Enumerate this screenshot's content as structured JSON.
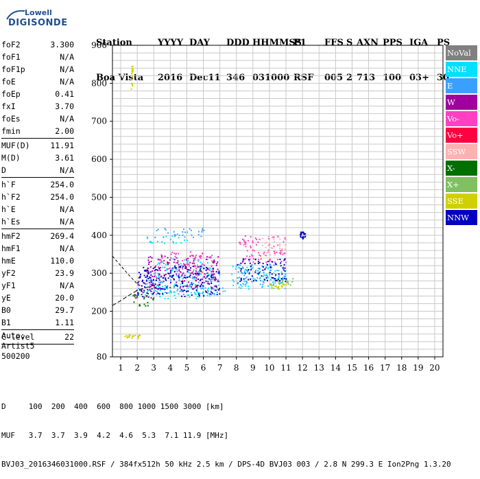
{
  "logo": {
    "line1": "Lowell",
    "line2": "DIGISONDE"
  },
  "header": {
    "row1": [
      "Station",
      "YYYY",
      "DAY",
      "DDD",
      "HHMMSS",
      "P1",
      "FFS",
      "S",
      "AXN",
      "PPS",
      "IGA",
      "PS"
    ],
    "row2": [
      "Boa Vista",
      "2016",
      "Dec11",
      "346",
      "031000",
      "RSF",
      "005",
      "2",
      "713",
      "100",
      "03+",
      "30"
    ]
  },
  "params": [
    {
      "name": "foF2",
      "value": "3.300"
    },
    {
      "name": "foF1",
      "value": "N/A"
    },
    {
      "name": "foF1p",
      "value": "N/A"
    },
    {
      "name": "foE",
      "value": "N/A"
    },
    {
      "name": "foEp",
      "value": "0.41"
    },
    {
      "name": "fxI",
      "value": "3.70"
    },
    {
      "name": "foEs",
      "value": "N/A"
    },
    {
      "name": "fmin",
      "value": "2.00"
    },
    {
      "sep": true
    },
    {
      "name": "MUF(D)",
      "value": "11.91"
    },
    {
      "name": "M(D)",
      "value": "3.61"
    },
    {
      "name": "D",
      "value": "N/A"
    },
    {
      "sep": true
    },
    {
      "name": "h`F",
      "value": "254.0"
    },
    {
      "name": "h`F2",
      "value": "254.0"
    },
    {
      "name": "h`E",
      "value": "N/A"
    },
    {
      "name": "h`Es",
      "value": "N/A"
    },
    {
      "sep": true
    },
    {
      "name": "hmF2",
      "value": "269.4"
    },
    {
      "name": "hmF1",
      "value": "N/A"
    },
    {
      "name": "hmE",
      "value": "110.0"
    },
    {
      "name": "yF2",
      "value": "23.9"
    },
    {
      "name": "yF1",
      "value": "N/A"
    },
    {
      "name": "yE",
      "value": "20.0"
    },
    {
      "name": "B0",
      "value": "29.7"
    },
    {
      "name": "B1",
      "value": "1.11"
    },
    {
      "sep": true
    },
    {
      "name": "C-level",
      "value": "22"
    },
    {
      "sep": true
    }
  ],
  "auto": {
    "line1": "Auto:",
    "line2": "Artist5",
    "line3": "500200"
  },
  "legend": [
    {
      "label": "NoVal",
      "color": "#808080"
    },
    {
      "label": "NNE",
      "color": "#00e0ff"
    },
    {
      "label": "E",
      "color": "#3aa0ff"
    },
    {
      "label": "W",
      "color": "#a000a0"
    },
    {
      "label": "Vo-",
      "color": "#ff40c0"
    },
    {
      "label": "Vo+",
      "color": "#ff0040"
    },
    {
      "label": "SSW",
      "color": "#ffb0b0"
    },
    {
      "label": "X-",
      "color": "#007000"
    },
    {
      "label": "X+",
      "color": "#80c060"
    },
    {
      "label": "SSE",
      "color": "#d0d000"
    },
    {
      "label": "NNW",
      "color": "#0000c0"
    }
  ],
  "footer": {
    "line1": "D     100  200  400  600  800 1000 1500 3000 [km]",
    "line2": "MUF   3.7  3.7  3.9  4.2  4.6  5.3  7.1 11.9 [MHz]",
    "line3": "BVJ03_2016346031000.RSF / 384fx512h 50 kHz 2.5 km / DPS-4D BVJ03 003 / 2.8 N 299.3 E Ion2Png 1.3.20"
  },
  "chart_data": {
    "type": "scatter",
    "xlim": [
      0.5,
      20.5
    ],
    "ylim": [
      80,
      900
    ],
    "xticks": [
      1,
      2,
      3,
      4,
      5,
      6,
      7,
      8,
      9,
      10,
      11,
      12,
      13,
      14,
      15,
      16,
      17,
      18,
      19,
      20
    ],
    "yticks": [
      80,
      200,
      300,
      400,
      500,
      600,
      700,
      800,
      900
    ],
    "grid": true,
    "dashed_curve": [
      [
        0.5,
        345
      ],
      [
        1,
        320
      ],
      [
        1.5,
        295
      ],
      [
        2,
        272
      ]
    ],
    "profile_curve": [
      [
        0.5,
        215
      ],
      [
        1.0,
        228
      ],
      [
        1.5,
        242
      ],
      [
        2.0,
        255
      ],
      [
        2.5,
        262
      ],
      [
        3.0,
        268
      ],
      [
        3.3,
        269.4
      ]
    ],
    "series": [
      {
        "name": "NNE",
        "clusters": [
          {
            "x": [
              2,
              7.3
            ],
            "y": [
              235,
              275
            ]
          },
          {
            "x": [
              7.6,
              11
            ],
            "y": [
              260,
              320
            ]
          },
          {
            "x": [
              2.5,
              5
            ],
            "y": [
              380,
              400
            ]
          },
          {
            "x": [
              3,
              6.5
            ],
            "y": [
              290,
              340
            ]
          }
        ]
      },
      {
        "name": "E",
        "clusters": [
          {
            "x": [
              2,
              7
            ],
            "y": [
              245,
              300
            ]
          },
          {
            "x": [
              8,
              11
            ],
            "y": [
              270,
              330
            ]
          },
          {
            "x": [
              3,
              6
            ],
            "y": [
              395,
              420
            ]
          }
        ]
      },
      {
        "name": "W",
        "clusters": [
          {
            "x": [
              2.5,
              7
            ],
            "y": [
              260,
              350
            ]
          },
          {
            "x": [
              1.7,
              3
            ],
            "y": [
              235,
              280
            ]
          }
        ]
      },
      {
        "name": "Vo-",
        "clusters": [
          {
            "x": [
              3,
              6.5
            ],
            "y": [
              300,
              360
            ]
          },
          {
            "x": [
              8,
              11
            ],
            "y": [
              330,
              400
            ]
          }
        ]
      },
      {
        "name": "SSW",
        "clusters": [
          {
            "x": [
              9.5,
              11
            ],
            "y": [
              350,
              400
            ]
          }
        ]
      },
      {
        "name": "X-",
        "clusters": [
          {
            "x": [
              1.6,
              3
            ],
            "y": [
              215,
              250
            ]
          }
        ]
      },
      {
        "name": "X+",
        "clusters": [
          {
            "x": [
              10.5,
              11.5
            ],
            "y": [
              270,
              290
            ]
          }
        ]
      },
      {
        "name": "SSE",
        "clusters": [
          {
            "x": [
              1.6,
              1.7
            ],
            "y": [
              780,
              850
            ]
          },
          {
            "x": [
              1.2,
              2.2
            ],
            "y": [
              130,
              140
            ]
          },
          {
            "x": [
              10,
              11
            ],
            "y": [
              260,
              275
            ]
          }
        ]
      },
      {
        "name": "NNW",
        "clusters": [
          {
            "x": [
              2,
              7
            ],
            "y": [
              240,
              320
            ]
          },
          {
            "x": [
              8,
              11
            ],
            "y": [
              280,
              340
            ]
          },
          {
            "x": [
              11.8,
              12.2
            ],
            "y": [
              390,
              410
            ]
          }
        ]
      }
    ]
  }
}
